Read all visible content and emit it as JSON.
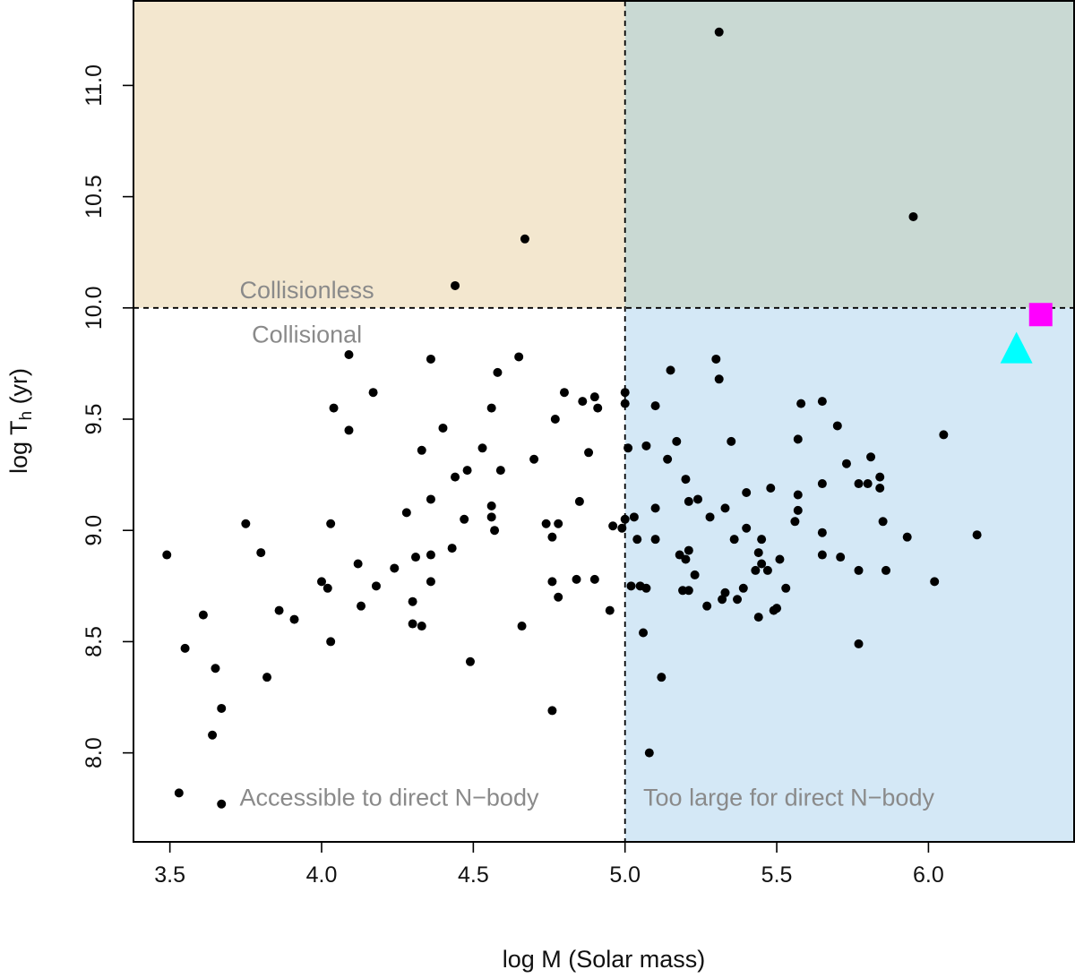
{
  "chart_data": {
    "type": "scatter",
    "xlabel": "log M (Solar mass)",
    "ylabel_main": "log T",
    "ylabel_sub": "h",
    "ylabel_unit": " (yr)",
    "xlim": [
      3.38,
      6.48
    ],
    "ylim": [
      7.6,
      11.38
    ],
    "xticks": [
      {
        "value": 3.5,
        "label": "3.5"
      },
      {
        "value": 4.0,
        "label": "4.0"
      },
      {
        "value": 4.5,
        "label": "4.5"
      },
      {
        "value": 5.0,
        "label": "5.0"
      },
      {
        "value": 5.5,
        "label": "5.5"
      },
      {
        "value": 6.0,
        "label": "6.0"
      }
    ],
    "yticks": [
      {
        "value": 8.0,
        "label": "8.0"
      },
      {
        "value": 8.5,
        "label": "8.5"
      },
      {
        "value": 9.0,
        "label": "9.0"
      },
      {
        "value": 9.5,
        "label": "9.5"
      },
      {
        "value": 10.0,
        "label": "10.0"
      },
      {
        "value": 10.5,
        "label": "10.5"
      },
      {
        "value": 11.0,
        "label": "11.0"
      }
    ],
    "thresholds": {
      "x": 5.0,
      "y": 10.0
    },
    "regions": [
      {
        "name": "collisionless-low-mass",
        "x": [
          3.38,
          5.0
        ],
        "y": [
          10.0,
          11.38
        ],
        "color": "#f3e7cf"
      },
      {
        "name": "collisionless-high-mass",
        "x": [
          5.0,
          6.48
        ],
        "y": [
          10.0,
          11.38
        ],
        "color": "#c9d9d3"
      },
      {
        "name": "collisional-high-mass",
        "x": [
          5.0,
          6.48
        ],
        "y": [
          7.6,
          10.0
        ],
        "color": "#d4e8f6"
      }
    ],
    "region_labels": [
      {
        "text": "Collisionless",
        "x": 3.73,
        "y": 10.08,
        "anchor": "start"
      },
      {
        "text": "Collisional",
        "x": 3.77,
        "y": 9.88,
        "anchor": "start"
      },
      {
        "text": "Accessible to direct N−body",
        "x": 3.73,
        "y": 7.8,
        "anchor": "start"
      },
      {
        "text": "Too large for direct N−body",
        "x": 5.06,
        "y": 7.8,
        "anchor": "start"
      }
    ],
    "colors": {
      "point": "#000000",
      "dashed_line": "#000000",
      "square": "#ff00ff",
      "triangle": "#00ffff"
    },
    "points": [
      [
        3.49,
        8.89
      ],
      [
        3.53,
        7.82
      ],
      [
        3.55,
        8.47
      ],
      [
        3.61,
        8.62
      ],
      [
        3.64,
        8.08
      ],
      [
        3.65,
        8.38
      ],
      [
        3.67,
        8.2
      ],
      [
        3.67,
        7.77
      ],
      [
        3.75,
        9.03
      ],
      [
        3.8,
        8.9
      ],
      [
        3.82,
        8.34
      ],
      [
        3.86,
        8.64
      ],
      [
        3.91,
        8.6
      ],
      [
        4.0,
        8.77
      ],
      [
        4.02,
        8.74
      ],
      [
        4.03,
        9.03
      ],
      [
        4.03,
        8.5
      ],
      [
        4.04,
        9.55
      ],
      [
        4.09,
        9.79
      ],
      [
        4.09,
        9.45
      ],
      [
        4.12,
        8.85
      ],
      [
        4.13,
        8.66
      ],
      [
        4.17,
        9.62
      ],
      [
        4.18,
        8.75
      ],
      [
        4.24,
        8.83
      ],
      [
        4.28,
        9.08
      ],
      [
        4.3,
        8.68
      ],
      [
        4.3,
        8.58
      ],
      [
        4.31,
        8.88
      ],
      [
        4.33,
        9.36
      ],
      [
        4.33,
        8.57
      ],
      [
        4.36,
        9.77
      ],
      [
        4.36,
        9.14
      ],
      [
        4.36,
        8.89
      ],
      [
        4.36,
        8.77
      ],
      [
        4.4,
        9.46
      ],
      [
        4.43,
        8.92
      ],
      [
        4.44,
        10.1
      ],
      [
        4.44,
        9.24
      ],
      [
        4.47,
        9.05
      ],
      [
        4.48,
        9.27
      ],
      [
        4.49,
        8.41
      ],
      [
        4.53,
        9.37
      ],
      [
        4.56,
        9.55
      ],
      [
        4.56,
        9.11
      ],
      [
        4.56,
        9.06
      ],
      [
        4.57,
        9.0
      ],
      [
        4.58,
        9.71
      ],
      [
        4.59,
        9.27
      ],
      [
        4.65,
        9.78
      ],
      [
        4.66,
        8.57
      ],
      [
        4.67,
        10.31
      ],
      [
        4.7,
        9.32
      ],
      [
        4.74,
        9.03
      ],
      [
        4.76,
        8.97
      ],
      [
        4.76,
        8.77
      ],
      [
        4.76,
        8.19
      ],
      [
        4.77,
        9.5
      ],
      [
        4.78,
        9.03
      ],
      [
        4.78,
        8.7
      ],
      [
        4.8,
        9.62
      ],
      [
        4.84,
        8.78
      ],
      [
        4.85,
        9.13
      ],
      [
        4.86,
        9.58
      ],
      [
        4.88,
        9.35
      ],
      [
        4.9,
        9.6
      ],
      [
        4.9,
        8.78
      ],
      [
        4.91,
        9.55
      ],
      [
        4.95,
        8.64
      ],
      [
        4.96,
        9.02
      ],
      [
        4.99,
        9.01
      ],
      [
        5.0,
        9.62
      ],
      [
        5.0,
        9.57
      ],
      [
        5.0,
        9.05
      ],
      [
        5.01,
        9.37
      ],
      [
        5.02,
        8.75
      ],
      [
        5.03,
        9.06
      ],
      [
        5.04,
        8.96
      ],
      [
        5.05,
        8.75
      ],
      [
        5.06,
        8.54
      ],
      [
        5.07,
        9.38
      ],
      [
        5.07,
        8.74
      ],
      [
        5.08,
        8.0
      ],
      [
        5.1,
        9.56
      ],
      [
        5.1,
        9.1
      ],
      [
        5.1,
        8.96
      ],
      [
        5.12,
        8.34
      ],
      [
        5.14,
        9.32
      ],
      [
        5.15,
        9.72
      ],
      [
        5.17,
        9.4
      ],
      [
        5.18,
        8.89
      ],
      [
        5.19,
        8.73
      ],
      [
        5.2,
        8.87
      ],
      [
        5.2,
        9.23
      ],
      [
        5.21,
        9.13
      ],
      [
        5.21,
        8.73
      ],
      [
        5.21,
        8.91
      ],
      [
        5.23,
        8.8
      ],
      [
        5.24,
        9.14
      ],
      [
        5.27,
        8.66
      ],
      [
        5.28,
        9.06
      ],
      [
        5.3,
        9.77
      ],
      [
        5.31,
        9.68
      ],
      [
        5.31,
        11.24
      ],
      [
        5.32,
        8.69
      ],
      [
        5.33,
        8.72
      ],
      [
        5.33,
        9.1
      ],
      [
        5.35,
        9.4
      ],
      [
        5.36,
        8.96
      ],
      [
        5.37,
        8.69
      ],
      [
        5.39,
        8.74
      ],
      [
        5.4,
        9.17
      ],
      [
        5.4,
        9.01
      ],
      [
        5.43,
        8.82
      ],
      [
        5.44,
        8.61
      ],
      [
        5.44,
        8.9
      ],
      [
        5.45,
        8.85
      ],
      [
        5.45,
        8.96
      ],
      [
        5.47,
        8.82
      ],
      [
        5.48,
        9.19
      ],
      [
        5.49,
        8.64
      ],
      [
        5.5,
        8.65
      ],
      [
        5.51,
        8.87
      ],
      [
        5.53,
        8.74
      ],
      [
        5.56,
        9.04
      ],
      [
        5.57,
        9.41
      ],
      [
        5.57,
        9.16
      ],
      [
        5.57,
        9.09
      ],
      [
        5.58,
        9.57
      ],
      [
        5.65,
        9.58
      ],
      [
        5.65,
        9.21
      ],
      [
        5.65,
        8.99
      ],
      [
        5.65,
        8.89
      ],
      [
        5.7,
        9.47
      ],
      [
        5.71,
        8.88
      ],
      [
        5.73,
        9.3
      ],
      [
        5.77,
        9.21
      ],
      [
        5.77,
        8.82
      ],
      [
        5.77,
        8.49
      ],
      [
        5.8,
        9.21
      ],
      [
        5.81,
        9.33
      ],
      [
        5.84,
        9.24
      ],
      [
        5.84,
        9.19
      ],
      [
        5.85,
        9.04
      ],
      [
        5.86,
        8.82
      ],
      [
        5.93,
        8.97
      ],
      [
        5.95,
        10.41
      ],
      [
        6.02,
        8.77
      ],
      [
        6.05,
        9.43
      ],
      [
        6.16,
        8.98
      ]
    ],
    "special_markers": [
      {
        "shape": "square",
        "x": 6.37,
        "y": 9.97
      },
      {
        "shape": "triangle",
        "x": 6.29,
        "y": 9.82
      }
    ]
  }
}
